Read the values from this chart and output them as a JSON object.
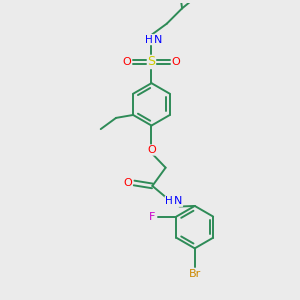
{
  "bg_color": "#ebebeb",
  "bond_color": "#2e8b57",
  "atom_colors": {
    "N": "#0000ff",
    "O": "#ff0000",
    "S": "#cccc00",
    "F": "#cc00cc",
    "Br": "#cc8800",
    "C": "#2e8b57"
  },
  "font_size": 7.5,
  "lw": 1.4
}
